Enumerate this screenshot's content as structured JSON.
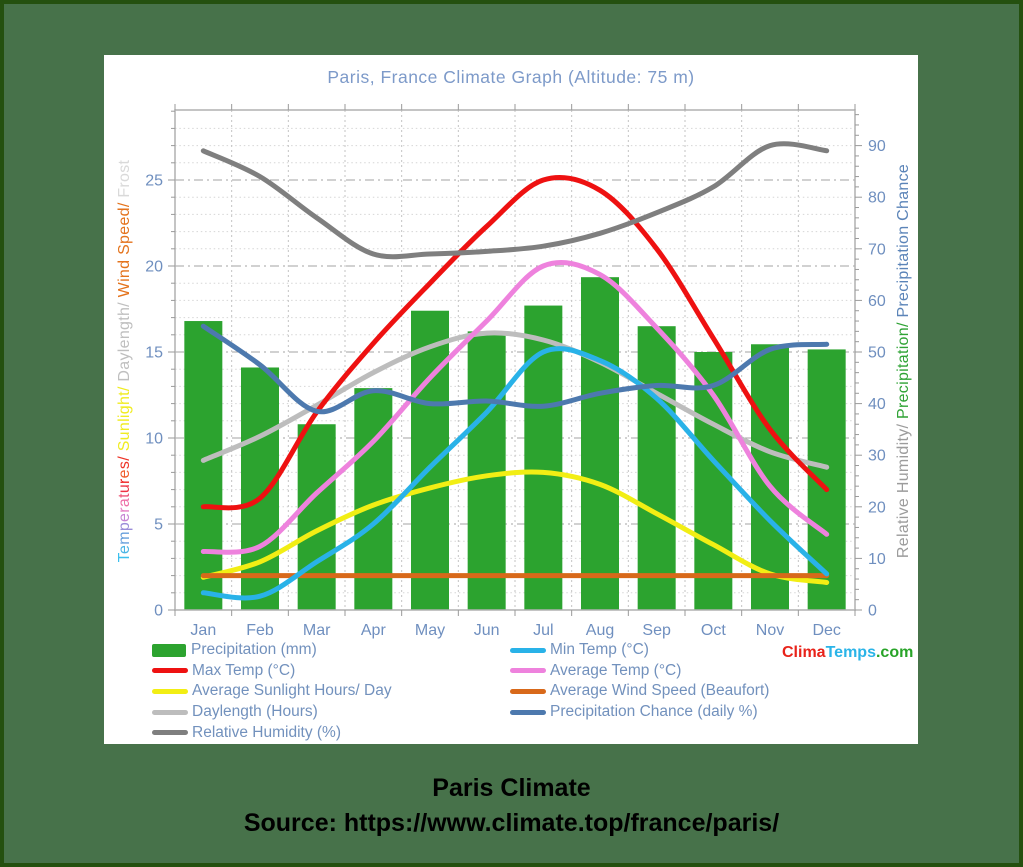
{
  "title": "Paris, France Climate Graph (Altitude: 75 m)",
  "caption": {
    "line1": "Paris Climate",
    "line2": "Source: https://www.climate.top/france/paris/"
  },
  "watermark": {
    "parts": [
      {
        "text": "Clima",
        "color": "#e8231a"
      },
      {
        "text": "Temps",
        "color": "#2ab4e8"
      },
      {
        "text": ".com",
        "color": "#28a428"
      }
    ]
  },
  "colors": {
    "outer_border": "#24500f",
    "background": "#47724a",
    "panel": "#ffffff",
    "title_text": "#7d9ac9",
    "tick_text": "#6f8fbf",
    "legend_text": "#7291bd",
    "grid_minor": "#d6d6d6",
    "grid_major": "#a3a3a3",
    "grid_vertical": "#c3c3c3",
    "axis_frame": "#b0b0b0",
    "tick_mark": "#9a9a9a"
  },
  "left_axis_label": {
    "parts": [
      {
        "text": "Temperatures/",
        "color": "multicolor",
        "letter_colors": [
          "#3cc0ee",
          "#4ab4e4",
          "#68a0dc",
          "#9a8cd8",
          "#c684d4",
          "#e47fc4",
          "#ee70a8",
          "#ee5577",
          "#ee3344",
          "#ee2222",
          "#f05c2c",
          "#ee3326",
          "#ee3326"
        ]
      },
      {
        "text": " "
      },
      {
        "text": "Sunlight/",
        "color": "#f0ec20"
      },
      {
        "text": " "
      },
      {
        "text": "Daylength/",
        "color": "#bfbfbf"
      },
      {
        "text": " "
      },
      {
        "text": "Wind Speed/",
        "color": "#e4731c"
      },
      {
        "text": " "
      },
      {
        "text": "Frost",
        "color": "#d9d9d9"
      }
    ]
  },
  "right_axis_label": {
    "parts": [
      {
        "text": "Relative Humidity/",
        "color": "#9c9c9c"
      },
      {
        "text": " "
      },
      {
        "text": "Precipitation/",
        "color": "#2fa335"
      },
      {
        "text": " "
      },
      {
        "text": "Precipitation Chance",
        "color": "#5b84b8"
      }
    ]
  },
  "chart_data": {
    "type": "combo",
    "categories": [
      "Jan",
      "Feb",
      "Mar",
      "Apr",
      "May",
      "Jun",
      "Jul",
      "Aug",
      "Sep",
      "Oct",
      "Nov",
      "Dec"
    ],
    "left_axis": {
      "ticks": [
        0,
        5,
        10,
        15,
        20,
        25
      ],
      "max": 29.07,
      "minor_step": 1,
      "major_step": 5
    },
    "right_axis": {
      "ticks": [
        0,
        10,
        20,
        30,
        40,
        50,
        60,
        70,
        80,
        90
      ],
      "max": 96.9,
      "minor_step": 2,
      "major_step": 10
    },
    "bar_series": {
      "name": "Precipitation (mm)",
      "axis": "right",
      "color": "#2ca32f",
      "values": [
        56,
        47,
        36,
        43,
        58,
        54,
        59,
        64.5,
        55,
        50,
        51.5,
        50.5
      ]
    },
    "line_series": [
      {
        "name": "Daylength (Hours)",
        "axis": "left",
        "color": "#bdbdbd",
        "values": [
          8.7,
          10.1,
          11.9,
          13.8,
          15.3,
          16.1,
          15.7,
          14.4,
          12.6,
          10.8,
          9.2,
          8.3
        ]
      },
      {
        "name": "Average Sunlight Hours/ Day",
        "axis": "left",
        "color": "#f2ee14",
        "values": [
          1.9,
          2.8,
          4.6,
          6.1,
          7.1,
          7.8,
          8,
          7.3,
          5.6,
          3.8,
          2.1,
          1.6
        ]
      },
      {
        "name": "Average Wind Speed (Beaufort)",
        "axis": "left",
        "color": "#d8691a",
        "values": [
          2,
          2,
          2,
          2,
          2,
          2,
          2,
          2,
          2,
          2,
          2,
          2
        ]
      },
      {
        "name": "Min Temp (°C)",
        "axis": "left",
        "color": "#29b2e8",
        "values": [
          1,
          0.8,
          2.8,
          5,
          8.3,
          11.5,
          15,
          14.5,
          12.3,
          8.7,
          5.2,
          2.1
        ]
      },
      {
        "name": "Average Temp (°C)",
        "axis": "left",
        "color": "#ee82dd",
        "values": [
          3.4,
          3.7,
          6.8,
          9.8,
          13.5,
          16.8,
          20,
          19.5,
          16.4,
          12.5,
          7.2,
          4.4
        ]
      },
      {
        "name": "Max Temp (°C)",
        "axis": "left",
        "color": "#ee1111",
        "values": [
          6,
          6.5,
          11.5,
          15.5,
          19,
          22.3,
          25,
          24.4,
          21,
          15.8,
          10.5,
          7
        ]
      },
      {
        "name": "Precipitation Chance (daily %)",
        "axis": "right",
        "color": "#4d79ae",
        "values": [
          55,
          47.5,
          38.5,
          42.5,
          40,
          40.5,
          39.5,
          42,
          43.5,
          43.5,
          50.5,
          51.5
        ]
      },
      {
        "name": "Relative Humidity (%)",
        "axis": "right",
        "color": "#7f7f7f",
        "values": [
          89,
          84,
          76,
          69,
          69,
          69.5,
          70.5,
          73,
          77,
          82,
          90,
          89
        ]
      }
    ],
    "legend": {
      "left_column": [
        {
          "label": "Precipitation (mm)",
          "color": "#2ca32f",
          "swatch": "rect"
        },
        {
          "label": "Max Temp (°C)",
          "color": "#ee1111",
          "swatch": "line"
        },
        {
          "label": "Average Sunlight Hours/ Day",
          "color": "#f2ee14",
          "swatch": "line"
        },
        {
          "label": "Daylength (Hours)",
          "color": "#bdbdbd",
          "swatch": "line"
        },
        {
          "label": "Relative Humidity (%)",
          "color": "#7f7f7f",
          "swatch": "line"
        }
      ],
      "right_column": [
        {
          "label": "Min Temp (°C)",
          "color": "#29b2e8",
          "swatch": "line"
        },
        {
          "label": "Average Temp (°C)",
          "color": "#ee82dd",
          "swatch": "line"
        },
        {
          "label": "Average Wind Speed (Beaufort)",
          "color": "#d8691a",
          "swatch": "line"
        },
        {
          "label": "Precipitation Chance (daily %)",
          "color": "#4d79ae",
          "swatch": "line"
        }
      ]
    }
  }
}
